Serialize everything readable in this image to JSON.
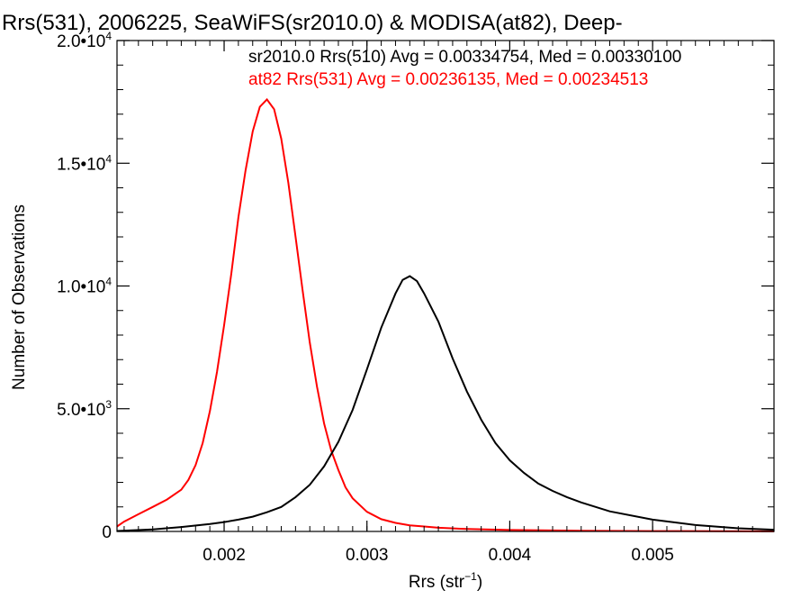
{
  "chart_data": {
    "type": "line",
    "title": "Rrs(531), 2006225, SeaWiFS(sr2010.0) & MODISA(at82), Deep-",
    "xlabel": "Rrs (str",
    "xlabel_sup": "−1",
    "xlabel_close": ")",
    "ylabel": "Number of Observations",
    "xlim": [
      0.00125,
      0.00585
    ],
    "ylim": [
      0,
      20000
    ],
    "xticks": [
      {
        "value": 0.002,
        "label": "0.002"
      },
      {
        "value": 0.003,
        "label": "0.003"
      },
      {
        "value": 0.004,
        "label": "0.004"
      },
      {
        "value": 0.005,
        "label": "0.005"
      }
    ],
    "yticks": [
      {
        "value": 0,
        "mant": "0",
        "exp": ""
      },
      {
        "value": 5000,
        "mant": "5.0•10",
        "exp": "3"
      },
      {
        "value": 10000,
        "mant": "1.0•10",
        "exp": "4"
      },
      {
        "value": 15000,
        "mant": "1.5•10",
        "exp": "4"
      },
      {
        "value": 20000,
        "mant": "2.0•10",
        "exp": "4"
      }
    ],
    "annotations": [
      {
        "text": "sr2010.0 Rrs(510) Avg = 0.00334754, Med = 0.00330100",
        "color": "#000000"
      },
      {
        "text": "at82 Rrs(531) Avg = 0.00236135, Med = 0.00234513",
        "color": "#ff0000"
      }
    ],
    "series": [
      {
        "color": "#ff0000",
        "x": [
          0.00125,
          0.0013,
          0.0014,
          0.0015,
          0.0016,
          0.0017,
          0.00175,
          0.0018,
          0.00185,
          0.0019,
          0.00195,
          0.002,
          0.00205,
          0.0021,
          0.00215,
          0.0022,
          0.00225,
          0.0023,
          0.00235,
          0.0024,
          0.00245,
          0.0025,
          0.00255,
          0.0026,
          0.00265,
          0.0027,
          0.00275,
          0.0028,
          0.00285,
          0.0029,
          0.003,
          0.0031,
          0.0032,
          0.0033,
          0.0034,
          0.0035,
          0.0037,
          0.004,
          0.0045,
          0.005,
          0.0055,
          0.00585
        ],
        "y": [
          200,
          400,
          700,
          1000,
          1300,
          1700,
          2100,
          2700,
          3600,
          4900,
          6500,
          8400,
          10500,
          12800,
          14700,
          16300,
          17300,
          17600,
          17200,
          16000,
          14200,
          12000,
          9800,
          7700,
          5900,
          4400,
          3300,
          2500,
          1800,
          1350,
          800,
          500,
          350,
          250,
          200,
          150,
          100,
          60,
          30,
          15,
          10,
          5
        ]
      },
      {
        "color": "#000000",
        "x": [
          0.00125,
          0.0015,
          0.0017,
          0.0019,
          0.002,
          0.0021,
          0.0022,
          0.0023,
          0.0024,
          0.0025,
          0.0026,
          0.0027,
          0.0028,
          0.0029,
          0.003,
          0.0031,
          0.0032,
          0.00325,
          0.0033,
          0.00335,
          0.0034,
          0.0035,
          0.0036,
          0.0037,
          0.0038,
          0.0039,
          0.004,
          0.0041,
          0.0042,
          0.0043,
          0.0044,
          0.0045,
          0.0047,
          0.005,
          0.0053,
          0.0056,
          0.00585
        ],
        "y": [
          20,
          80,
          180,
          300,
          380,
          480,
          600,
          780,
          1000,
          1400,
          1900,
          2650,
          3650,
          4950,
          6600,
          8300,
          9700,
          10250,
          10400,
          10200,
          9700,
          8550,
          7050,
          5700,
          4550,
          3600,
          2900,
          2380,
          1950,
          1650,
          1400,
          1180,
          820,
          480,
          260,
          130,
          70
        ]
      }
    ]
  }
}
